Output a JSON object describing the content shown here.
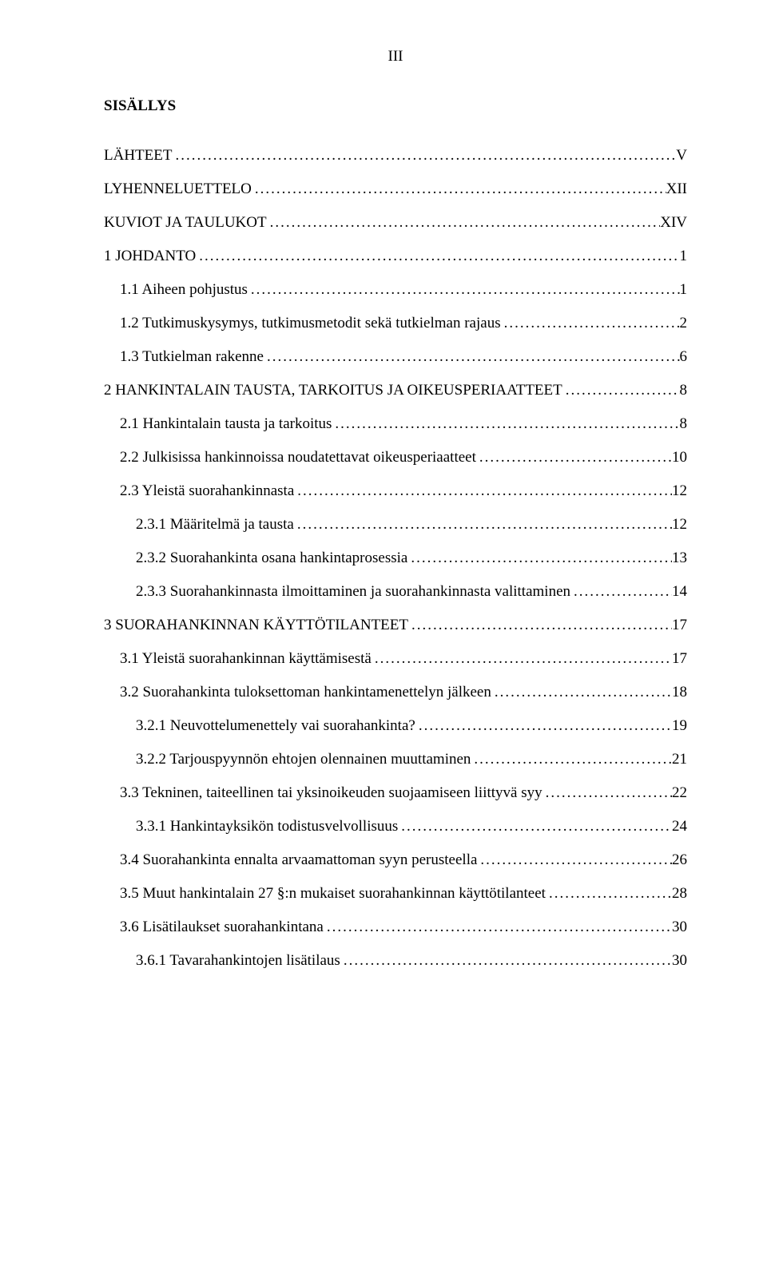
{
  "page_number_header": "III",
  "doc_title": "SISÄLLYS",
  "dot_fill": "..........................................................................................................................................................",
  "toc": [
    {
      "label": "LÄHTEET",
      "page": "V",
      "indent": 0,
      "gap": false
    },
    {
      "label": "LYHENNELUETTELO",
      "page": "XII",
      "indent": 0,
      "gap": false
    },
    {
      "label": "KUVIOT JA TAULUKOT",
      "page": "XIV",
      "indent": 0,
      "gap": false
    },
    {
      "label": "1 JOHDANTO",
      "page": "1",
      "indent": 0,
      "gap": true
    },
    {
      "label": "1.1 Aiheen pohjustus",
      "page": "1",
      "indent": 1,
      "gap": false
    },
    {
      "label": "1.2 Tutkimuskysymys, tutkimusmetodit sekä tutkielman rajaus",
      "page": "2",
      "indent": 1,
      "gap": false
    },
    {
      "label": "1.3 Tutkielman rakenne",
      "page": "6",
      "indent": 1,
      "gap": false
    },
    {
      "label": "2 HANKINTALAIN TAUSTA, TARKOITUS JA OIKEUSPERIAATTEET",
      "page": "8",
      "indent": 0,
      "gap": false
    },
    {
      "label": "2.1 Hankintalain tausta ja tarkoitus",
      "page": "8",
      "indent": 1,
      "gap": false
    },
    {
      "label": "2.2 Julkisissa hankinnoissa noudatettavat oikeusperiaatteet",
      "page": "10",
      "indent": 1,
      "gap": false
    },
    {
      "label": "2.3 Yleistä suorahankinnasta",
      "page": "12",
      "indent": 1,
      "gap": false
    },
    {
      "label": "2.3.1 Määritelmä ja tausta",
      "page": "12",
      "indent": 2,
      "gap": false
    },
    {
      "label": "2.3.2 Suorahankinta osana hankintaprosessia",
      "page": "13",
      "indent": 2,
      "gap": false
    },
    {
      "label": "2.3.3 Suorahankinnasta ilmoittaminen ja suorahankinnasta valittaminen",
      "page": "14",
      "indent": 2,
      "gap": false
    },
    {
      "label": "3 SUORAHANKINNAN KÄYTTÖTILANTEET",
      "page": "17",
      "indent": 0,
      "gap": false
    },
    {
      "label": "3.1 Yleistä suorahankinnan käyttämisestä",
      "page": "17",
      "indent": 1,
      "gap": false
    },
    {
      "label": "3.2 Suorahankinta tuloksettoman hankintamenettelyn jälkeen",
      "page": "18",
      "indent": 1,
      "gap": false
    },
    {
      "label": "3.2.1 Neuvottelumenettely vai suorahankinta?",
      "page": "19",
      "indent": 2,
      "gap": false
    },
    {
      "label": "3.2.2 Tarjouspyynnön ehtojen olennainen muuttaminen",
      "page": "21",
      "indent": 2,
      "gap": false
    },
    {
      "label": "3.3 Tekninen, taiteellinen tai yksinoikeuden suojaamiseen liittyvä syy",
      "page": "22",
      "indent": 1,
      "gap": false
    },
    {
      "label": "3.3.1 Hankintayksikön todistusvelvollisuus",
      "page": "24",
      "indent": 2,
      "gap": false
    },
    {
      "label": "3.4 Suorahankinta ennalta arvaamattoman syyn perusteella",
      "page": "26",
      "indent": 1,
      "gap": false
    },
    {
      "label": "3.5 Muut hankintalain 27 §:n mukaiset suorahankinnan käyttötilanteet",
      "page": "28",
      "indent": 1,
      "gap": false
    },
    {
      "label": "3.6 Lisätilaukset suorahankintana",
      "page": "30",
      "indent": 1,
      "gap": false
    },
    {
      "label": "3.6.1 Tavarahankintojen lisätilaus",
      "page": "30",
      "indent": 2,
      "gap": false
    }
  ]
}
